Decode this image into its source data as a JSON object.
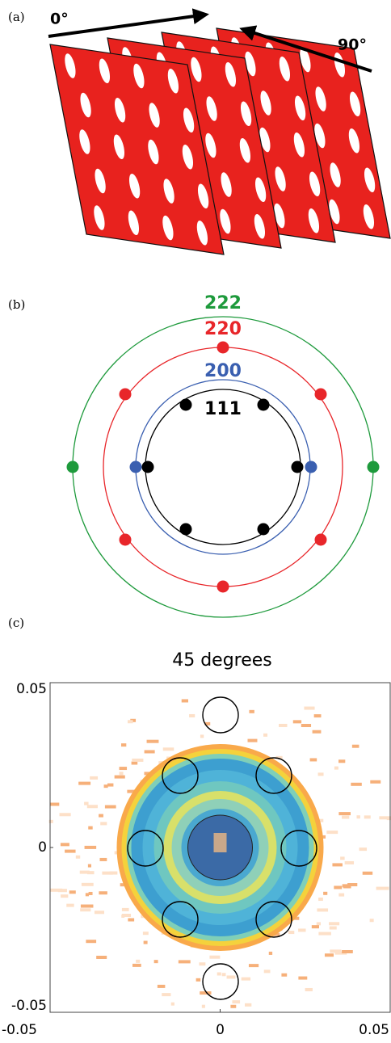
{
  "panels": [
    {
      "label": "(a)",
      "angles": [
        "0°",
        "90°"
      ]
    },
    {
      "label": "(b)",
      "rings": [
        {
          "label": "222",
          "color": "#1e9a3c"
        },
        {
          "label": "220",
          "color": "#e8262a"
        },
        {
          "label": "200",
          "color": "#3a5fb0"
        },
        {
          "label": "111",
          "color": "#000000"
        }
      ]
    },
    {
      "label": "(c)",
      "title": "45 degrees",
      "xlim": [
        -0.05,
        0.05
      ],
      "ylim": [
        -0.05,
        0.05
      ],
      "xticks": [
        -0.05,
        0,
        0.05
      ],
      "yticks": [
        -0.05,
        0,
        0.05
      ]
    }
  ]
}
